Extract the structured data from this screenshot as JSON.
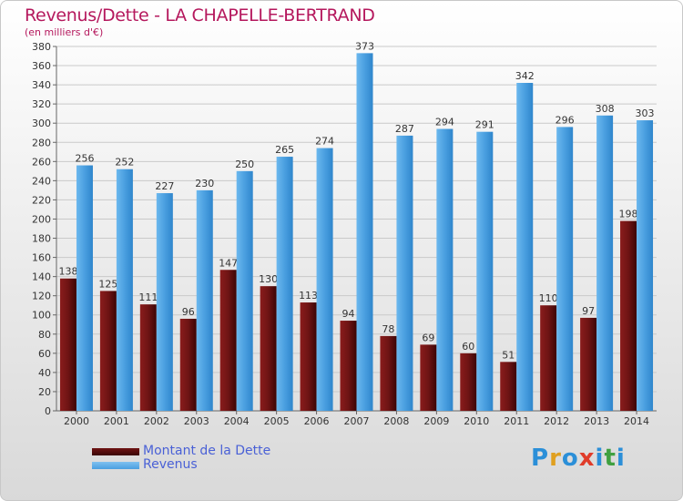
{
  "title": "Revenus/Dette - LA CHAPELLE-BERTRAND",
  "subtitle": "(en milliers d'€)",
  "legend": [
    {
      "label": "Montant de la Dette",
      "color": "#6e1414"
    },
    {
      "label": "Revenus",
      "color": "#4a9fe0"
    }
  ],
  "logo": {
    "text": "Proxiti",
    "colors": [
      "#2b8fd8",
      "#e0a020",
      "#2b8fd8",
      "#e03c2a",
      "#2b8fd8",
      "#40a040",
      "#2b8fd8"
    ]
  },
  "chart_data": {
    "type": "bar",
    "categories": [
      "2000",
      "2001",
      "2002",
      "2003",
      "2004",
      "2005",
      "2006",
      "2007",
      "2008",
      "2009",
      "2010",
      "2011",
      "2012",
      "2013",
      "2014"
    ],
    "series": [
      {
        "name": "Montant de la Dette",
        "values": [
          138,
          125,
          111,
          96,
          147,
          130,
          113,
          94,
          78,
          69,
          60,
          51,
          110,
          97,
          198
        ],
        "color": "#6e1414"
      },
      {
        "name": "Revenus",
        "values": [
          256,
          252,
          227,
          230,
          250,
          265,
          274,
          373,
          287,
          294,
          291,
          342,
          296,
          308,
          303
        ],
        "color": "#4a9fe0"
      }
    ],
    "ylim": [
      0,
      380
    ],
    "ystep": 20,
    "grid": true
  }
}
